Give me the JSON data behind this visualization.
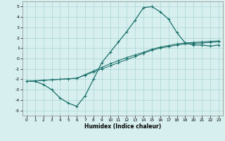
{
  "xlabel": "Humidex (Indice chaleur)",
  "xlim": [
    -0.5,
    23.5
  ],
  "ylim": [
    -5.5,
    5.5
  ],
  "xticks": [
    0,
    1,
    2,
    3,
    4,
    5,
    6,
    7,
    8,
    9,
    10,
    11,
    12,
    13,
    14,
    15,
    16,
    17,
    18,
    19,
    20,
    21,
    22,
    23
  ],
  "yticks": [
    -5,
    -4,
    -3,
    -2,
    -1,
    0,
    1,
    2,
    3,
    4,
    5
  ],
  "bg_color": "#d8efef",
  "grid_color": "#aad4d4",
  "line_color": "#1a706a",
  "curve1_x": [
    0,
    1,
    2,
    3,
    4,
    5,
    6,
    7,
    8,
    9,
    10,
    11,
    12,
    13,
    14,
    15,
    16,
    17,
    18,
    19,
    20,
    21,
    22,
    23
  ],
  "curve1_y": [
    -2.2,
    -2.2,
    -2.5,
    -3.0,
    -3.8,
    -4.3,
    -4.6,
    -3.6,
    -2.0,
    -0.4,
    0.6,
    1.6,
    2.6,
    3.7,
    4.9,
    5.0,
    4.5,
    3.8,
    2.5,
    1.5,
    1.3,
    1.3,
    1.2,
    1.3
  ],
  "curve2_x": [
    0,
    1,
    2,
    3,
    4,
    5,
    6,
    7,
    8,
    9,
    10,
    11,
    12,
    13,
    14,
    15,
    16,
    17,
    18,
    19,
    20,
    21,
    22,
    23
  ],
  "curve2_y": [
    -2.2,
    -2.15,
    -2.1,
    -2.05,
    -2.0,
    -1.95,
    -1.9,
    -1.6,
    -1.3,
    -1.0,
    -0.7,
    -0.4,
    -0.1,
    0.2,
    0.5,
    0.8,
    1.0,
    1.15,
    1.3,
    1.4,
    1.45,
    1.5,
    1.55,
    1.6
  ],
  "curve3_x": [
    0,
    1,
    2,
    3,
    4,
    5,
    6,
    7,
    8,
    9,
    10,
    11,
    12,
    13,
    14,
    15,
    16,
    17,
    18,
    19,
    20,
    21,
    22,
    23
  ],
  "curve3_y": [
    -2.2,
    -2.15,
    -2.1,
    -2.05,
    -2.0,
    -1.95,
    -1.9,
    -1.55,
    -1.2,
    -0.85,
    -0.5,
    -0.2,
    0.1,
    0.35,
    0.6,
    0.9,
    1.1,
    1.25,
    1.4,
    1.5,
    1.55,
    1.6,
    1.65,
    1.7
  ]
}
